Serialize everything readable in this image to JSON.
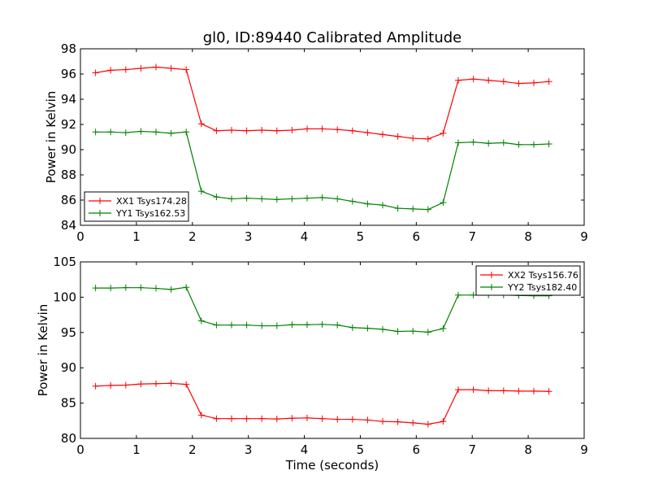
{
  "chart_data": [
    {
      "type": "line",
      "title": "gl0, ID:89440 Calibrated Amplitude",
      "xlabel": "",
      "ylabel": "Power in Kelvin",
      "xlim": [
        0,
        9
      ],
      "ylim": [
        84,
        98
      ],
      "xticks": [
        "0",
        "1",
        "2",
        "3",
        "4",
        "5",
        "6",
        "7",
        "8",
        "9"
      ],
      "yticks": [
        "84",
        "86",
        "88",
        "90",
        "92",
        "94",
        "96",
        "98"
      ],
      "grid": false,
      "legend_position": "lower-left",
      "x": [
        0.27,
        0.54,
        0.81,
        1.08,
        1.35,
        1.62,
        1.89,
        2.16,
        2.43,
        2.7,
        2.97,
        3.24,
        3.51,
        3.78,
        4.05,
        4.32,
        4.59,
        4.86,
        5.13,
        5.4,
        5.67,
        5.94,
        6.21,
        6.48,
        6.75,
        7.02,
        7.29,
        7.56,
        7.83,
        8.1,
        8.37
      ],
      "series": [
        {
          "name": "XX1 Tsys174.28",
          "color": "#ff0000",
          "values": [
            96.1,
            96.3,
            96.35,
            96.45,
            96.55,
            96.45,
            96.35,
            92.05,
            91.5,
            91.55,
            91.5,
            91.55,
            91.5,
            91.55,
            91.65,
            91.65,
            91.6,
            91.5,
            91.35,
            91.2,
            91.05,
            90.9,
            90.85,
            91.3,
            95.5,
            95.6,
            95.5,
            95.4,
            95.25,
            95.3,
            95.4
          ]
        },
        {
          "name": "YY1 Tsys162.53",
          "color": "#008000",
          "values": [
            91.4,
            91.4,
            91.35,
            91.45,
            91.4,
            91.3,
            91.4,
            86.7,
            86.25,
            86.1,
            86.15,
            86.1,
            86.05,
            86.1,
            86.15,
            86.2,
            86.1,
            85.9,
            85.7,
            85.6,
            85.35,
            85.3,
            85.25,
            85.8,
            90.55,
            90.6,
            90.5,
            90.55,
            90.4,
            90.4,
            90.45
          ]
        }
      ]
    },
    {
      "type": "line",
      "title": "",
      "xlabel": "Time (seconds)",
      "ylabel": "Power in Kelvin",
      "xlim": [
        0,
        9
      ],
      "ylim": [
        80,
        105
      ],
      "xticks": [
        "0",
        "1",
        "2",
        "3",
        "4",
        "5",
        "6",
        "7",
        "8",
        "9"
      ],
      "yticks": [
        "80",
        "85",
        "90",
        "95",
        "100",
        "105"
      ],
      "grid": false,
      "legend_position": "upper-right",
      "x": [
        0.27,
        0.54,
        0.81,
        1.08,
        1.35,
        1.62,
        1.89,
        2.16,
        2.43,
        2.7,
        2.97,
        3.24,
        3.51,
        3.78,
        4.05,
        4.32,
        4.59,
        4.86,
        5.13,
        5.4,
        5.67,
        5.94,
        6.21,
        6.48,
        6.75,
        7.02,
        7.29,
        7.56,
        7.83,
        8.1,
        8.37
      ],
      "series": [
        {
          "name": "XX2 Tsys156.76",
          "color": "#ff0000",
          "values": [
            87.4,
            87.5,
            87.55,
            87.7,
            87.75,
            87.8,
            87.65,
            83.3,
            82.8,
            82.8,
            82.8,
            82.8,
            82.75,
            82.85,
            82.9,
            82.8,
            82.7,
            82.7,
            82.6,
            82.4,
            82.35,
            82.2,
            82.0,
            82.4,
            86.9,
            86.9,
            86.75,
            86.75,
            86.7,
            86.7,
            86.65
          ]
        },
        {
          "name": "YY2 Tsys182.40",
          "color": "#008000",
          "values": [
            101.3,
            101.3,
            101.35,
            101.35,
            101.25,
            101.1,
            101.4,
            96.65,
            96.05,
            96.05,
            96.05,
            95.95,
            95.95,
            96.1,
            96.1,
            96.15,
            96.05,
            95.7,
            95.6,
            95.45,
            95.15,
            95.2,
            95.05,
            95.55,
            100.3,
            100.3,
            100.3,
            100.3,
            100.25,
            100.2,
            100.2
          ]
        }
      ]
    }
  ]
}
